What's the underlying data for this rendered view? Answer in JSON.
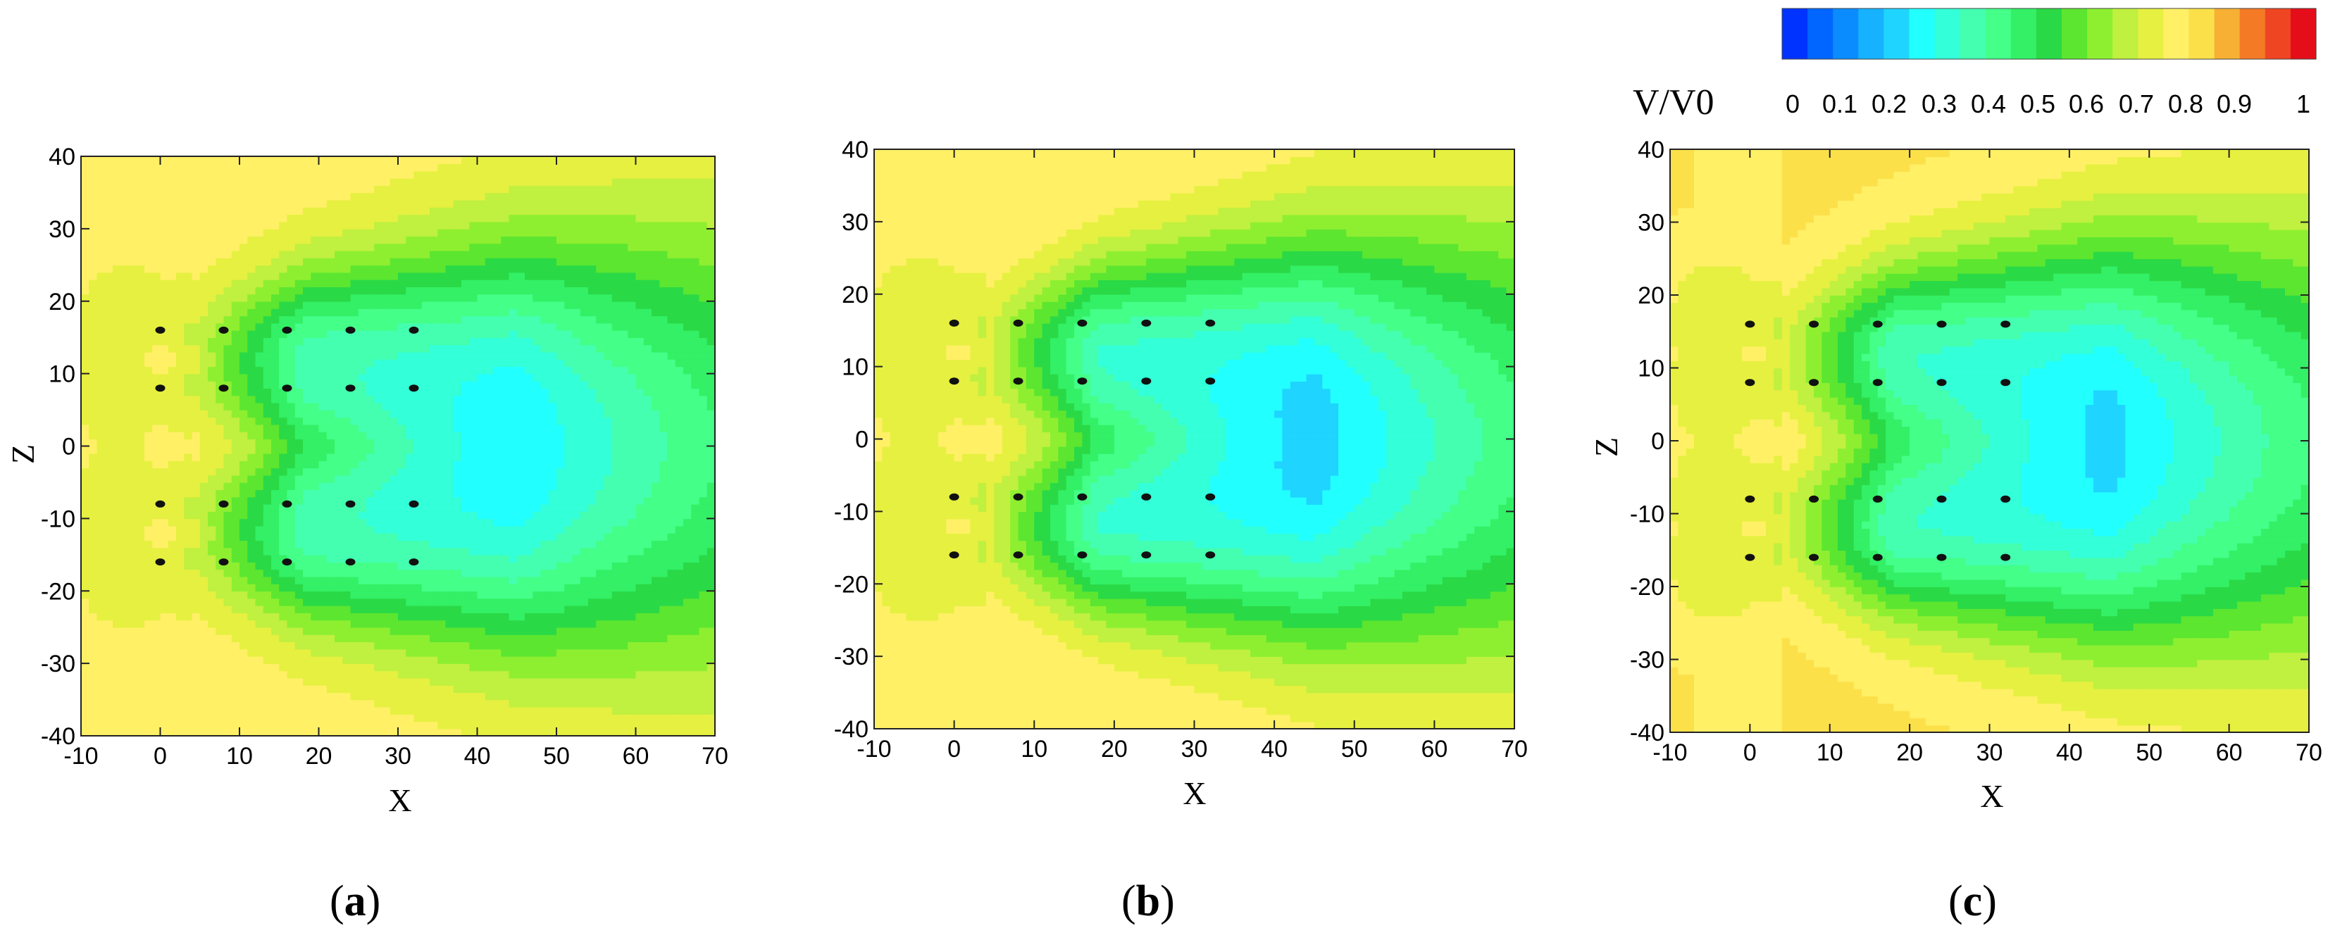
{
  "colorbar": {
    "title": "V/V0",
    "ticks": [
      "0",
      "0.1",
      "0.2",
      "0.3",
      "0.4",
      "0.5",
      "0.6",
      "0.7",
      "0.8",
      "0.9",
      "1"
    ],
    "range": [
      0,
      1
    ],
    "levels": 20,
    "colors": [
      "#0033ff",
      "#0066ff",
      "#0a8cff",
      "#16b2ff",
      "#1fd4ff",
      "#22ffff",
      "#33ffd8",
      "#44ffb0",
      "#44ff88",
      "#33f066",
      "#2ad946",
      "#5ce630",
      "#8eef30",
      "#c0f040",
      "#e6f040",
      "#fff066",
      "#fce04a",
      "#f7b034",
      "#f57a26",
      "#ef4522",
      "#e60d1a"
    ]
  },
  "chart_data": [
    {
      "type": "heatmap",
      "panel": "a",
      "caption_open": "(",
      "caption_letter": "a",
      "caption_close": ")",
      "xlabel": "X",
      "ylabel": "Z",
      "xlim": [
        -10,
        70
      ],
      "ylim": [
        -40,
        40
      ],
      "xticks": [
        "-10",
        "0",
        "10",
        "20",
        "30",
        "40",
        "50",
        "60",
        "70"
      ],
      "yticks": [
        "40",
        "30",
        "20",
        "10",
        "0",
        "-10",
        "-20",
        "-30",
        "-40"
      ],
      "turbine_rows_z": [
        16,
        8,
        -8,
        -16
      ],
      "turbine_x": [
        0,
        8,
        16,
        24,
        32
      ],
      "inflow_deficit": 0.72,
      "background_value": 0.78,
      "wake_min_value": 0.38,
      "center_jet_value": 0.82
    },
    {
      "type": "heatmap",
      "panel": "b",
      "caption_open": "(",
      "caption_letter": "b",
      "caption_close": ")",
      "xlabel": "X",
      "ylabel": "",
      "xlim": [
        -10,
        70
      ],
      "ylim": [
        -40,
        40
      ],
      "xticks": [
        "-10",
        "0",
        "10",
        "20",
        "30",
        "40",
        "50",
        "60",
        "70"
      ],
      "yticks": [
        "40",
        "30",
        "20",
        "10",
        "0",
        "-10",
        "-20",
        "-30",
        "-40"
      ],
      "turbine_rows_z": [
        16,
        8,
        -8,
        -16
      ],
      "turbine_x": [
        0,
        8,
        16,
        24,
        32
      ],
      "inflow_deficit": 0.7,
      "background_value": 0.8,
      "wake_min_value": 0.36,
      "center_jet_value": 0.84
    },
    {
      "type": "heatmap",
      "panel": "c",
      "caption_open": "(",
      "caption_letter": "c",
      "caption_close": ")",
      "xlabel": "X",
      "ylabel": "Z",
      "xlim": [
        -10,
        70
      ],
      "ylim": [
        -40,
        40
      ],
      "xticks": [
        "-10",
        "0",
        "10",
        "20",
        "30",
        "40",
        "50",
        "60",
        "70"
      ],
      "yticks": [
        "40",
        "30",
        "20",
        "10",
        "0",
        "-10",
        "-20",
        "-30",
        "-40"
      ],
      "turbine_rows_z": [
        16,
        8,
        -8,
        -16
      ],
      "turbine_x": [
        0,
        8,
        16,
        24,
        32
      ],
      "inflow_deficit": 0.7,
      "background_value": 0.81,
      "wake_min_value": 0.37,
      "center_jet_value": 0.84
    }
  ]
}
